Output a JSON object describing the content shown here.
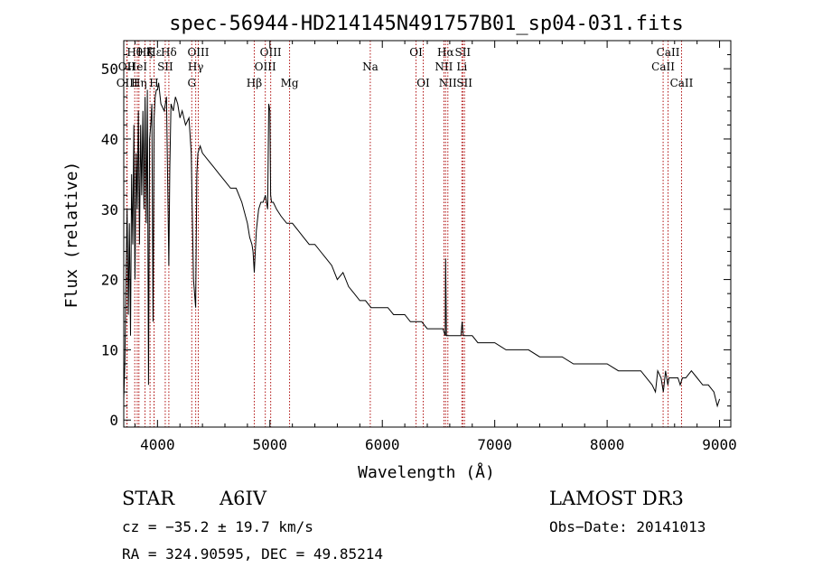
{
  "chart_data": {
    "type": "line",
    "title": "spec-56944-HD214145N491757B01_sp04-031.fits",
    "xlabel": "Wavelength (Å)",
    "ylabel": "Flux (relative)",
    "xlim": [
      3700,
      9100
    ],
    "ylim": [
      -1,
      54
    ],
    "grid": false,
    "x_ticks": [
      4000,
      5000,
      6000,
      7000,
      8000,
      9000
    ],
    "y_ticks": [
      0,
      10,
      20,
      30,
      40,
      50
    ],
    "series": [
      {
        "name": "spectrum",
        "x": [
          3700,
          3710,
          3720,
          3730,
          3740,
          3750,
          3760,
          3770,
          3780,
          3790,
          3800,
          3810,
          3820,
          3830,
          3840,
          3850,
          3860,
          3870,
          3880,
          3890,
          3900,
          3910,
          3920,
          3930,
          3940,
          3950,
          3960,
          3970,
          3980,
          3990,
          4000,
          4010,
          4030,
          4060,
          4080,
          4090,
          4101,
          4110,
          4120,
          4140,
          4160,
          4180,
          4200,
          4220,
          4250,
          4280,
          4300,
          4320,
          4330,
          4340,
          4350,
          4360,
          4380,
          4400,
          4450,
          4500,
          4550,
          4600,
          4650,
          4700,
          4750,
          4800,
          4820,
          4840,
          4850,
          4861,
          4870,
          4880,
          4900,
          4920,
          4940,
          4960,
          4980,
          4990,
          5000,
          5007,
          5015,
          5030,
          5060,
          5100,
          5150,
          5200,
          5250,
          5300,
          5350,
          5400,
          5450,
          5500,
          5550,
          5600,
          5650,
          5700,
          5750,
          5800,
          5850,
          5900,
          5950,
          6000,
          6050,
          6100,
          6150,
          6200,
          6250,
          6300,
          6310,
          6320,
          6350,
          6400,
          6450,
          6500,
          6540,
          6560,
          6563,
          6570,
          6580,
          6600,
          6650,
          6700,
          6710,
          6720,
          6750,
          6800,
          6850,
          6900,
          6950,
          7000,
          7100,
          7200,
          7300,
          7400,
          7500,
          7600,
          7700,
          7800,
          7900,
          8000,
          8100,
          8200,
          8300,
          8400,
          8430,
          8450,
          8480,
          8500,
          8520,
          8540,
          8550,
          8580,
          8600,
          8630,
          8650,
          8670,
          8700,
          8750,
          8800,
          8850,
          8900,
          8950,
          8980,
          9000
        ],
        "y": [
          3,
          8,
          20,
          30,
          15,
          28,
          12,
          35,
          25,
          42,
          20,
          38,
          30,
          44,
          25,
          42,
          32,
          44,
          30,
          46,
          28,
          47,
          5,
          40,
          42,
          45,
          14,
          43,
          46,
          47,
          47,
          48,
          45,
          44,
          46,
          35,
          22,
          36,
          45,
          44,
          46,
          45,
          43,
          44,
          42,
          43,
          38,
          20,
          18,
          16,
          35,
          38,
          39,
          38,
          37,
          36,
          35,
          34,
          33,
          33,
          31,
          28,
          26,
          25,
          24,
          21,
          24,
          27,
          30,
          31,
          31,
          32,
          30,
          45,
          44,
          32,
          31,
          31,
          30,
          29,
          28,
          28,
          27,
          26,
          25,
          25,
          24,
          23,
          22,
          20,
          21,
          19,
          18,
          17,
          17,
          16,
          16,
          16,
          16,
          15,
          15,
          15,
          14,
          14,
          14,
          14,
          14,
          13,
          13,
          13,
          13,
          12,
          23,
          12,
          12,
          12,
          12,
          12,
          14,
          12,
          12,
          12,
          11,
          11,
          11,
          11,
          10,
          10,
          10,
          9,
          9,
          9,
          8,
          8,
          8,
          8,
          7,
          7,
          7,
          5,
          4,
          7,
          6,
          4,
          7,
          5,
          6,
          6,
          6,
          6,
          5,
          6,
          6,
          7,
          6,
          5,
          5,
          4,
          2,
          3
        ]
      }
    ],
    "lines": [
      {
        "name": "Hε",
        "x": 3970,
        "row": 1,
        "offset": 0
      },
      {
        "name": "Hζ",
        "x": 3889,
        "row": 1,
        "offset": 0
      },
      {
        "name": "Hη",
        "x": 3835,
        "row": 3,
        "offset": 0
      },
      {
        "name": "Hθ",
        "x": 3798,
        "row": 1,
        "offset": 0
      },
      {
        "name": "OII",
        "x": 3727,
        "row": 2,
        "offset": 0
      },
      {
        "name": "OIII",
        "x": 3730,
        "row": 3,
        "offset": 0
      },
      {
        "name": "HeI",
        "x": 3820,
        "row": 2,
        "offset": 0
      },
      {
        "name": "K",
        "x": 3934,
        "row": 1,
        "offset": 0
      },
      {
        "name": "H",
        "x": 3969,
        "row": 3,
        "offset": 0
      },
      {
        "name": "Hδ",
        "x": 4101,
        "row": 1,
        "offset": 0
      },
      {
        "name": "SII",
        "x": 4069,
        "row": 2,
        "offset": 0
      },
      {
        "name": "Hγ",
        "x": 4340,
        "row": 2,
        "offset": 0
      },
      {
        "name": "G",
        "x": 4305,
        "row": 3,
        "offset": 0
      },
      {
        "name": "OIII",
        "x": 4363,
        "row": 1,
        "offset": 0
      },
      {
        "name": "Hβ",
        "x": 4861,
        "row": 3,
        "offset": 0
      },
      {
        "name": "OIII",
        "x": 4959,
        "row": 2,
        "offset": 0
      },
      {
        "name": "OIII",
        "x": 5007,
        "row": 1,
        "offset": 0
      },
      {
        "name": "Mg",
        "x": 5175,
        "row": 3,
        "offset": 0
      },
      {
        "name": "Na",
        "x": 5893,
        "row": 2,
        "offset": 0
      },
      {
        "name": "OI",
        "x": 6300,
        "row": 1,
        "offset": 0
      },
      {
        "name": "OI",
        "x": 6364,
        "row": 3,
        "offset": 0
      },
      {
        "name": "Hα",
        "x": 6563,
        "row": 1,
        "offset": 0
      },
      {
        "name": "NII",
        "x": 6548,
        "row": 2,
        "offset": 0
      },
      {
        "name": "NII",
        "x": 6583,
        "row": 3,
        "offset": 0
      },
      {
        "name": "SII",
        "x": 6716,
        "row": 1,
        "offset": 0
      },
      {
        "name": "Li",
        "x": 6708,
        "row": 2,
        "offset": 0
      },
      {
        "name": "SII",
        "x": 6731,
        "row": 3,
        "offset": 0
      },
      {
        "name": "CaII",
        "x": 8498,
        "row": 2,
        "offset": 0
      },
      {
        "name": "CaII",
        "x": 8542,
        "row": 1,
        "offset": 0
      },
      {
        "name": "CaII",
        "x": 8662,
        "row": 3,
        "offset": 0
      }
    ]
  },
  "info": {
    "object_type": "STAR",
    "spectral_class": "A6IV",
    "survey": "LAMOST  DR3",
    "velocity": "cz = −35.2 ± 19.7 km/s",
    "obs_date": "Obs−Date: 20141013",
    "coords": "RA = 324.90595, DEC =  49.85214"
  },
  "colors": {
    "spectrum": "#000000",
    "line_marker": "#b01010",
    "text": "#000000"
  }
}
